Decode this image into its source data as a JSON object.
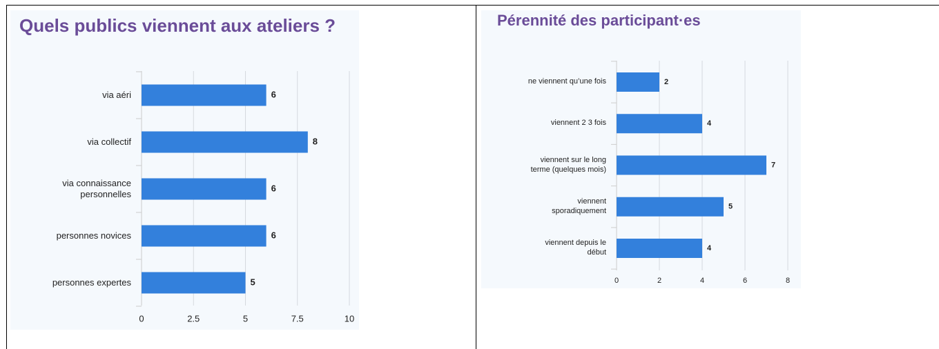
{
  "chart_data": [
    {
      "type": "barh",
      "title": "Quels publics viennent aux ateliers ?",
      "categories": [
        "via aéri",
        "via collectif",
        "via connaissance personnelles",
        "personnes novices",
        "personnes expertes"
      ],
      "values": [
        6,
        8,
        6,
        6,
        5
      ],
      "color": "#3380dc",
      "xlim": [
        0,
        10
      ],
      "xticks": [
        0,
        2.5,
        5,
        7.5,
        10
      ],
      "grid": true
    },
    {
      "type": "barh",
      "title": "Pérennité des participant·es",
      "categories": [
        "ne viennent qu’une fois",
        "viennent 2 3 fois",
        "viennent sur le long terme (quelques mois)",
        "viennent sporadiquement",
        "viennent depuis le début"
      ],
      "values": [
        2,
        4,
        7,
        5,
        4
      ],
      "color": "#3380dc",
      "xlim": [
        0,
        8
      ],
      "xticks": [
        0,
        2,
        4,
        6,
        8
      ],
      "grid": true
    }
  ]
}
